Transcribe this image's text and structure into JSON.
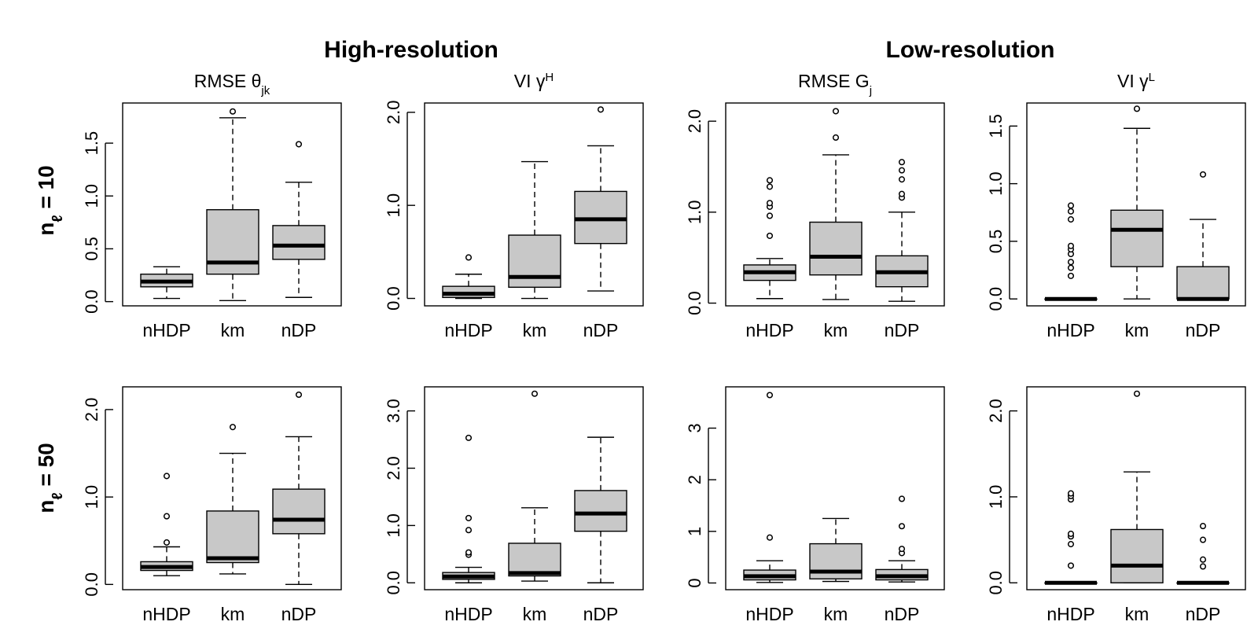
{
  "figure": {
    "column_titles": [
      "High-resolution",
      "Low-resolution"
    ],
    "row_titles": [
      {
        "main": "n",
        "sub": "ℓ",
        "rest": " = 10"
      },
      {
        "main": "n",
        "sub": "ℓ",
        "rest": " = 50"
      }
    ]
  },
  "chart_data": [
    {
      "type": "boxplot",
      "row": 0,
      "col": 0,
      "title": {
        "main": "RMSE θ",
        "sub": "jk",
        "sup": ""
      },
      "categories": [
        "nHDP",
        "km",
        "nDP"
      ],
      "ylim": [
        -0.04,
        1.88
      ],
      "yticks": [
        0.0,
        0.5,
        1.0,
        1.5
      ],
      "ytick_labels": [
        "0.0",
        "0.5",
        "1.0",
        "1.5"
      ],
      "boxes": [
        {
          "category": "nHDP",
          "whisker_low": 0.03,
          "q1": 0.14,
          "median": 0.19,
          "q3": 0.26,
          "whisker_high": 0.33,
          "outliers": []
        },
        {
          "category": "km",
          "whisker_low": 0.01,
          "q1": 0.26,
          "median": 0.37,
          "q3": 0.87,
          "whisker_high": 1.74,
          "outliers": [
            1.8
          ]
        },
        {
          "category": "nDP",
          "whisker_low": 0.04,
          "q1": 0.4,
          "median": 0.53,
          "q3": 0.72,
          "whisker_high": 1.13,
          "outliers": [
            1.49
          ]
        }
      ]
    },
    {
      "type": "boxplot",
      "row": 0,
      "col": 1,
      "title": {
        "main": "VI γ",
        "sub": "",
        "sup": "H"
      },
      "categories": [
        "nHDP",
        "km",
        "nDP"
      ],
      "ylim": [
        -0.08,
        2.1
      ],
      "yticks": [
        0.0,
        1.0,
        2.0
      ],
      "ytick_labels": [
        "0.0",
        "1.0",
        "2.0"
      ],
      "boxes": [
        {
          "category": "nHDP",
          "whisker_low": 0.0,
          "q1": 0.01,
          "median": 0.05,
          "q3": 0.13,
          "whisker_high": 0.26,
          "outliers": [
            0.44
          ]
        },
        {
          "category": "km",
          "whisker_low": 0.0,
          "q1": 0.12,
          "median": 0.23,
          "q3": 0.68,
          "whisker_high": 1.47,
          "outliers": []
        },
        {
          "category": "nDP",
          "whisker_low": 0.08,
          "q1": 0.59,
          "median": 0.85,
          "q3": 1.15,
          "whisker_high": 1.64,
          "outliers": [
            2.03
          ]
        }
      ]
    },
    {
      "type": "boxplot",
      "row": 0,
      "col": 2,
      "title": {
        "main": "RMSE G",
        "sub": "j",
        "sup": ""
      },
      "categories": [
        "nHDP",
        "km",
        "nDP"
      ],
      "ylim": [
        -0.03,
        2.2
      ],
      "yticks": [
        0.0,
        1.0,
        2.0
      ],
      "ytick_labels": [
        "0.0",
        "1.0",
        "2.0"
      ],
      "boxes": [
        {
          "category": "nHDP",
          "whisker_low": 0.05,
          "q1": 0.25,
          "median": 0.34,
          "q3": 0.42,
          "whisker_high": 0.49,
          "outliers": [
            0.74,
            0.96,
            1.06,
            1.1,
            1.28,
            1.35
          ]
        },
        {
          "category": "km",
          "whisker_low": 0.04,
          "q1": 0.31,
          "median": 0.51,
          "q3": 0.89,
          "whisker_high": 1.63,
          "outliers": [
            1.82,
            2.11
          ]
        },
        {
          "category": "nDP",
          "whisker_low": 0.02,
          "q1": 0.18,
          "median": 0.34,
          "q3": 0.52,
          "whisker_high": 1.0,
          "outliers": [
            1.16,
            1.2,
            1.36,
            1.46,
            1.55
          ]
        }
      ]
    },
    {
      "type": "boxplot",
      "row": 0,
      "col": 3,
      "title": {
        "main": "VI γ",
        "sub": "",
        "sup": "L"
      },
      "categories": [
        "nHDP",
        "km",
        "nDP"
      ],
      "ylim": [
        -0.06,
        1.7
      ],
      "yticks": [
        0.0,
        0.5,
        1.0,
        1.5
      ],
      "ytick_labels": [
        "0.0",
        "0.5",
        "1.0",
        "1.5"
      ],
      "boxes": [
        {
          "category": "nHDP",
          "whisker_low": 0.0,
          "q1": 0.0,
          "median": 0.0,
          "q3": 0.0,
          "whisker_high": 0.0,
          "outliers": [
            0.2,
            0.27,
            0.32,
            0.39,
            0.43,
            0.46,
            0.69,
            0.76,
            0.81
          ]
        },
        {
          "category": "km",
          "whisker_low": 0.0,
          "q1": 0.28,
          "median": 0.6,
          "q3": 0.77,
          "whisker_high": 1.48,
          "outliers": [
            1.65
          ]
        },
        {
          "category": "nDP",
          "whisker_low": 0.0,
          "q1": 0.0,
          "median": 0.0,
          "q3": 0.28,
          "whisker_high": 0.69,
          "outliers": [
            1.08
          ]
        }
      ]
    },
    {
      "type": "boxplot",
      "row": 1,
      "col": 0,
      "title": {
        "main": "",
        "sub": "",
        "sup": ""
      },
      "categories": [
        "nHDP",
        "km",
        "nDP"
      ],
      "ylim": [
        -0.06,
        2.26
      ],
      "yticks": [
        0.0,
        1.0,
        2.0
      ],
      "ytick_labels": [
        "0.0",
        "1.0",
        "2.0"
      ],
      "boxes": [
        {
          "category": "nHDP",
          "whisker_low": 0.1,
          "q1": 0.16,
          "median": 0.2,
          "q3": 0.26,
          "whisker_high": 0.43,
          "outliers": [
            0.48,
            0.78,
            1.24
          ]
        },
        {
          "category": "km",
          "whisker_low": 0.12,
          "q1": 0.25,
          "median": 0.3,
          "q3": 0.84,
          "whisker_high": 1.5,
          "outliers": [
            1.8
          ]
        },
        {
          "category": "nDP",
          "whisker_low": 0.0,
          "q1": 0.58,
          "median": 0.74,
          "q3": 1.09,
          "whisker_high": 1.69,
          "outliers": [
            2.17
          ]
        }
      ]
    },
    {
      "type": "boxplot",
      "row": 1,
      "col": 1,
      "title": {
        "main": "",
        "sub": "",
        "sup": ""
      },
      "categories": [
        "nHDP",
        "km",
        "nDP"
      ],
      "ylim": [
        -0.12,
        3.42
      ],
      "yticks": [
        0.0,
        1.0,
        2.0,
        3.0
      ],
      "ytick_labels": [
        "0.0",
        "1.0",
        "2.0",
        "3.0"
      ],
      "boxes": [
        {
          "category": "nHDP",
          "whisker_low": 0.0,
          "q1": 0.06,
          "median": 0.11,
          "q3": 0.18,
          "whisker_high": 0.27,
          "outliers": [
            0.49,
            0.53,
            0.92,
            1.13,
            2.53
          ]
        },
        {
          "category": "km",
          "whisker_low": 0.03,
          "q1": 0.12,
          "median": 0.17,
          "q3": 0.69,
          "whisker_high": 1.31,
          "outliers": [
            3.3
          ]
        },
        {
          "category": "nDP",
          "whisker_low": 0.0,
          "q1": 0.9,
          "median": 1.21,
          "q3": 1.61,
          "whisker_high": 2.54,
          "outliers": []
        }
      ]
    },
    {
      "type": "boxplot",
      "row": 1,
      "col": 2,
      "title": {
        "main": "",
        "sub": "",
        "sup": ""
      },
      "categories": [
        "nHDP",
        "km",
        "nDP"
      ],
      "ylim": [
        -0.13,
        3.8
      ],
      "yticks": [
        0,
        1,
        2,
        3
      ],
      "ytick_labels": [
        "0",
        "1",
        "2",
        "3"
      ],
      "boxes": [
        {
          "category": "nHDP",
          "whisker_low": 0.01,
          "q1": 0.06,
          "median": 0.13,
          "q3": 0.25,
          "whisker_high": 0.43,
          "outliers": [
            0.88,
            3.64
          ]
        },
        {
          "category": "km",
          "whisker_low": 0.03,
          "q1": 0.08,
          "median": 0.22,
          "q3": 0.76,
          "whisker_high": 1.25,
          "outliers": []
        },
        {
          "category": "nDP",
          "whisker_low": 0.02,
          "q1": 0.06,
          "median": 0.13,
          "q3": 0.26,
          "whisker_high": 0.43,
          "outliers": [
            0.58,
            0.66,
            1.1,
            1.63
          ]
        }
      ]
    },
    {
      "type": "boxplot",
      "row": 1,
      "col": 3,
      "title": {
        "main": "",
        "sub": "",
        "sup": ""
      },
      "categories": [
        "nHDP",
        "km",
        "nDP"
      ],
      "ylim": [
        -0.08,
        2.28
      ],
      "yticks": [
        0.0,
        1.0,
        2.0
      ],
      "ytick_labels": [
        "0.0",
        "1.0",
        "2.0"
      ],
      "boxes": [
        {
          "category": "nHDP",
          "whisker_low": 0.0,
          "q1": 0.0,
          "median": 0.0,
          "q3": 0.0,
          "whisker_high": 0.0,
          "outliers": [
            0.2,
            0.45,
            0.54,
            0.57,
            0.97,
            1.01,
            1.04
          ]
        },
        {
          "category": "km",
          "whisker_low": 0.0,
          "q1": 0.0,
          "median": 0.2,
          "q3": 0.62,
          "whisker_high": 1.29,
          "outliers": [
            2.2
          ]
        },
        {
          "category": "nDP",
          "whisker_low": 0.0,
          "q1": 0.0,
          "median": 0.0,
          "q3": 0.0,
          "whisker_high": 0.0,
          "outliers": [
            0.19,
            0.27,
            0.5,
            0.66
          ]
        }
      ]
    }
  ]
}
